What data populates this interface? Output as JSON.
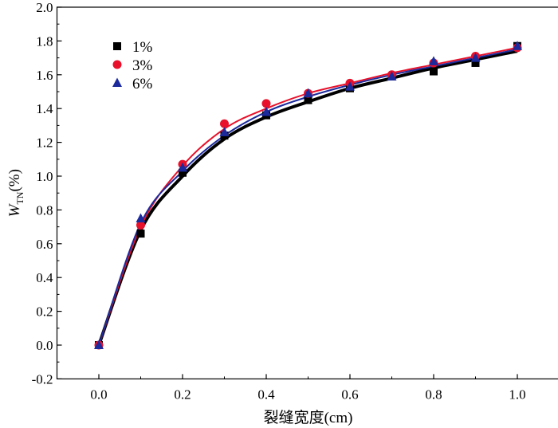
{
  "chart_data": {
    "type": "scatter",
    "xlabel": "裂缝宽度(cm)",
    "ylabel": {
      "main": "W",
      "sub": "TN",
      "rest": "(%)"
    },
    "xlim": [
      -0.1,
      1.1
    ],
    "ylim": [
      -0.2,
      2.0
    ],
    "xticks": [
      0.0,
      0.2,
      0.4,
      0.6,
      0.8,
      1.0
    ],
    "xtick_labels": [
      "0.0",
      "0.2",
      "0.4",
      "0.6",
      "0.8",
      "1.0"
    ],
    "yticks": [
      -0.2,
      0.0,
      0.2,
      0.4,
      0.6,
      0.8,
      1.0,
      1.2,
      1.4,
      1.6,
      1.8,
      2.0
    ],
    "ytick_labels": [
      "-0.2",
      "0.0",
      "0.2",
      "0.4",
      "0.6",
      "0.8",
      "1.0",
      "1.2",
      "1.4",
      "1.6",
      "1.8",
      "2.0"
    ],
    "grid": false,
    "legend_position": "top-left",
    "x": [
      0.0,
      0.1,
      0.2,
      0.3,
      0.4,
      0.5,
      0.6,
      0.7,
      0.8,
      0.9,
      1.0
    ],
    "series": [
      {
        "name": "1%",
        "marker": "square",
        "color": "#000000",
        "values": [
          0.0,
          0.66,
          1.02,
          1.24,
          1.36,
          1.45,
          1.52,
          1.59,
          1.62,
          1.67,
          1.77
        ],
        "fit": [
          0.0,
          0.68,
          1.0,
          1.22,
          1.35,
          1.44,
          1.52,
          1.58,
          1.64,
          1.69,
          1.74
        ]
      },
      {
        "name": "3%",
        "marker": "circle",
        "color": "#e8102a",
        "values": [
          0.0,
          0.71,
          1.07,
          1.31,
          1.43,
          1.49,
          1.55,
          1.6,
          1.67,
          1.71,
          1.76
        ],
        "fit": [
          0.0,
          0.7,
          1.06,
          1.28,
          1.4,
          1.49,
          1.55,
          1.61,
          1.66,
          1.71,
          1.76
        ]
      },
      {
        "name": "6%",
        "marker": "triangle",
        "color": "#1c2a9c",
        "values": [
          0.0,
          0.75,
          1.05,
          1.26,
          1.38,
          1.49,
          1.53,
          1.59,
          1.68,
          1.7,
          1.77
        ],
        "fit": [
          0.0,
          0.72,
          1.03,
          1.24,
          1.38,
          1.47,
          1.54,
          1.6,
          1.65,
          1.7,
          1.75
        ]
      }
    ]
  }
}
